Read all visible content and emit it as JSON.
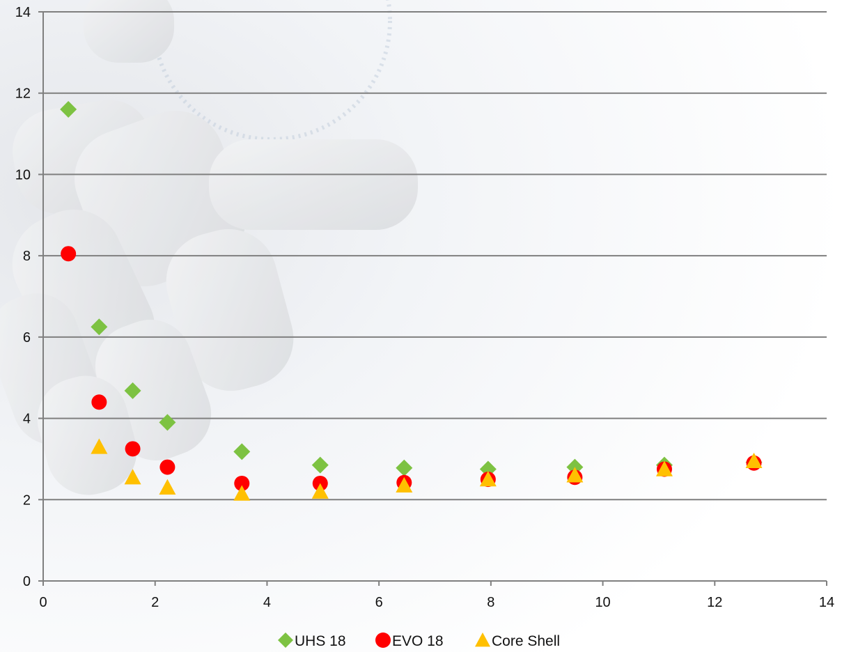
{
  "chart_data": {
    "type": "scatter",
    "title": "",
    "xlabel": "",
    "ylabel": "",
    "xlim": [
      0,
      14
    ],
    "ylim": [
      0,
      14
    ],
    "xticks": [
      0,
      2,
      4,
      6,
      8,
      10,
      12,
      14
    ],
    "yticks": [
      0,
      2,
      4,
      6,
      8,
      10,
      12,
      14
    ],
    "x_tick_labels": [
      "0",
      "2",
      "4",
      "6",
      "8",
      "10",
      "12",
      "14"
    ],
    "y_tick_labels": [
      "0",
      "2",
      "4",
      "6",
      "8",
      "10",
      "12",
      "14"
    ],
    "grid": "horizontal",
    "legend_position": "bottom-center",
    "series": [
      {
        "name": "UHS 18",
        "marker": "diamond",
        "color": "#7dc242",
        "x": [
          0.45,
          1.0,
          1.6,
          2.22,
          3.55,
          4.95,
          6.45,
          7.95,
          9.5,
          11.1,
          12.7
        ],
        "y": [
          11.6,
          6.25,
          4.68,
          3.9,
          3.18,
          2.85,
          2.78,
          2.75,
          2.8,
          2.85,
          2.92
        ]
      },
      {
        "name": "EVO 18",
        "marker": "circle",
        "color": "#ff0000",
        "x": [
          0.45,
          1.0,
          1.6,
          2.22,
          3.55,
          4.95,
          6.45,
          7.95,
          9.5,
          11.1,
          12.7
        ],
        "y": [
          8.05,
          4.4,
          3.25,
          2.8,
          2.4,
          2.4,
          2.42,
          2.5,
          2.55,
          2.75,
          2.9
        ]
      },
      {
        "name": "Core Shell",
        "marker": "triangle",
        "color": "#ffc000",
        "x": [
          1.0,
          1.6,
          2.22,
          3.55,
          4.95,
          6.45,
          7.95,
          9.5,
          11.1,
          12.7
        ],
        "y": [
          3.3,
          2.55,
          2.3,
          2.15,
          2.2,
          2.35,
          2.5,
          2.6,
          2.75,
          2.95
        ]
      }
    ]
  }
}
